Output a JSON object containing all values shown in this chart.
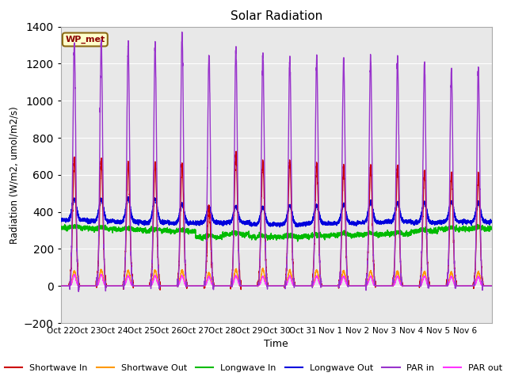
{
  "title": "Solar Radiation",
  "xlabel": "Time",
  "ylabel": "Radiation (W/m2, umol/m2/s)",
  "ylim": [
    -200,
    1400
  ],
  "background_color": "#e8e8e8",
  "annotation_text": "WP_met",
  "annotation_bg": "#ffffcc",
  "annotation_border": "#8b6914",
  "xtick_labels": [
    "Oct 22",
    "Oct 23",
    "Oct 24",
    "Oct 25",
    "Oct 26",
    "Oct 27",
    "Oct 28",
    "Oct 29",
    "Oct 30",
    "Oct 31",
    "Nov 1",
    "Nov 2",
    "Nov 3",
    "Nov 4",
    "Nov 5",
    "Nov 6"
  ],
  "legend": [
    {
      "label": "Shortwave In",
      "color": "#cc0000"
    },
    {
      "label": "Shortwave Out",
      "color": "#ff9900"
    },
    {
      "label": "Longwave In",
      "color": "#00bb00"
    },
    {
      "label": "Longwave Out",
      "color": "#0000dd"
    },
    {
      "label": "PAR in",
      "color": "#9933cc"
    },
    {
      "label": "PAR out",
      "color": "#ff33ff"
    }
  ],
  "n_days": 16,
  "shortwave_in_peaks": [
    690,
    680,
    670,
    660,
    655,
    430,
    720,
    670,
    680,
    650,
    645,
    635,
    640,
    620,
    605,
    600
  ],
  "shortwave_out_peaks": [
    80,
    85,
    85,
    85,
    85,
    70,
    90,
    90,
    85,
    85,
    80,
    80,
    80,
    75,
    75,
    75
  ],
  "longwave_in_base": [
    315,
    310,
    305,
    300,
    295,
    265,
    280,
    265,
    265,
    270,
    275,
    278,
    282,
    295,
    308,
    310
  ],
  "longwave_out_base": [
    355,
    350,
    345,
    342,
    338,
    342,
    342,
    332,
    332,
    337,
    337,
    342,
    347,
    342,
    347,
    345
  ],
  "longwave_out_peaks": [
    470,
    465,
    475,
    470,
    440,
    425,
    430,
    425,
    435,
    435,
    440,
    455,
    450,
    450,
    455,
    450
  ],
  "par_in_peaks": [
    1305,
    1320,
    1305,
    1290,
    1365,
    1245,
    1280,
    1255,
    1230,
    1230,
    1235,
    1230,
    1220,
    1200,
    1170,
    1165
  ],
  "par_out_peaks": [
    60,
    60,
    55,
    55,
    55,
    50,
    55,
    52,
    52,
    52,
    52,
    52,
    52,
    52,
    50,
    50
  ]
}
